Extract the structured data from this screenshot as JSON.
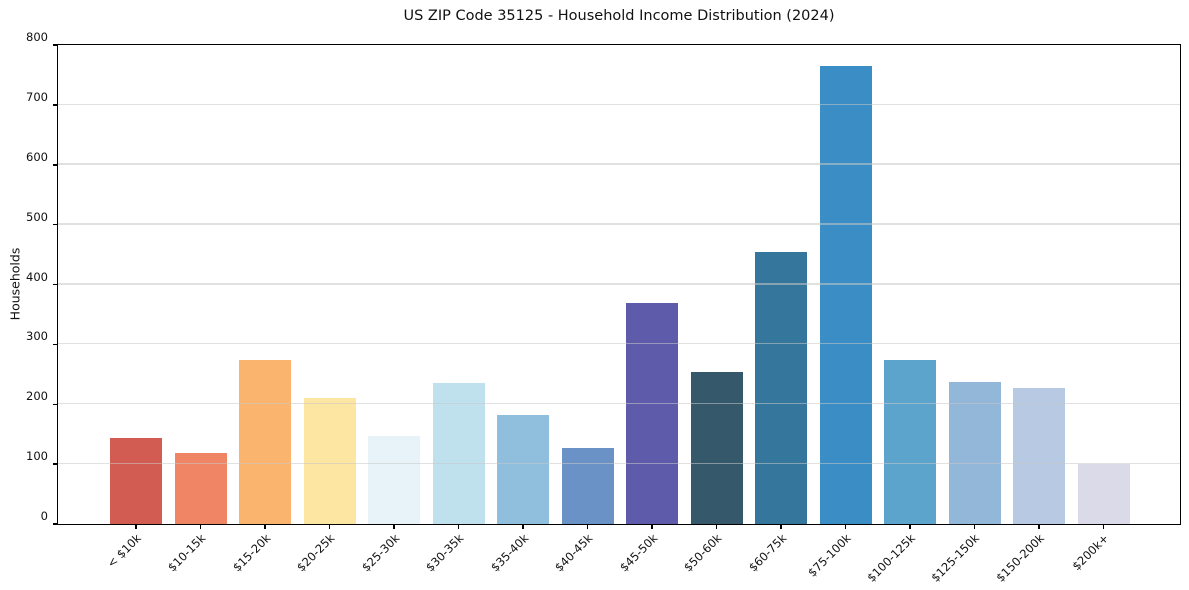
{
  "chart_data": {
    "type": "bar",
    "title": "US ZIP Code 35125 - Household Income Distribution (2024)",
    "xlabel": "",
    "ylabel": "Households",
    "ylim": [
      0,
      800
    ],
    "yticks": [
      0,
      100,
      200,
      300,
      400,
      500,
      600,
      700,
      800
    ],
    "grid": "horizontal-only",
    "legend": "none",
    "categories": [
      "< $10k",
      "$10-15k",
      "$15-20k",
      "$20-25k",
      "$25-30k",
      "$30-35k",
      "$35-40k",
      "$40-45k",
      "$45-50k",
      "$50-60k",
      "$60-75k",
      "$75-100k",
      "$100-125k",
      "$125-150k",
      "$150-200k",
      "$200k+"
    ],
    "values": [
      143,
      118,
      273,
      209,
      146,
      235,
      182,
      126,
      367,
      253,
      452,
      762,
      273,
      236,
      227,
      100
    ],
    "bar_colors": [
      "#d25b52",
      "#f08566",
      "#fab46e",
      "#fde5a2",
      "#e7f3f8",
      "#bfe1ee",
      "#90bedd",
      "#6a92c6",
      "#5d5baa",
      "#35596b",
      "#35779c",
      "#3a8ec5",
      "#5ca4cb",
      "#92b7d9",
      "#b7c9e3",
      "#dadae9"
    ],
    "axis_color": "#000000",
    "text_color": "#111111",
    "grid_color": "#c9c9c9",
    "background_color": "#ffffff"
  }
}
